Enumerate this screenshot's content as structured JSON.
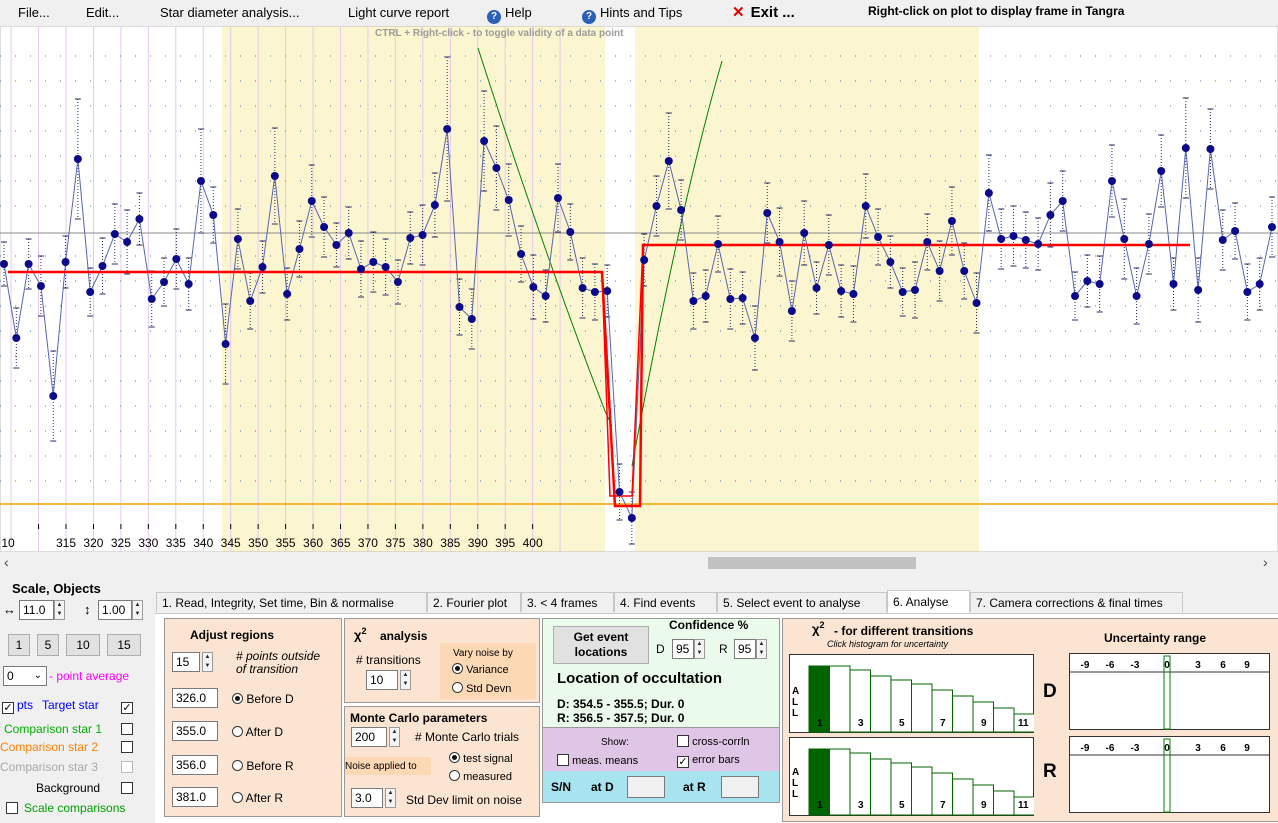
{
  "menu": {
    "file": "File...",
    "edit": "Edit...",
    "star_diameter": "Star diameter analysis...",
    "light_curve": "Light curve report",
    "help": "Help",
    "hints": "Hints and Tips",
    "exit": "Exit ...",
    "right_click_hint": "Right-click on plot to display frame in Tangra",
    "ctrl_hint": "CTRL + Right-click  -  to toggle validity of a data point"
  },
  "plot": {
    "x_ticks": [
      "10",
      "315",
      "320",
      "325",
      "330",
      "335",
      "340",
      "345",
      "350",
      "355",
      "360",
      "365",
      "370",
      "375",
      "380",
      "385",
      "390",
      "395",
      "400"
    ]
  },
  "left_panel": {
    "title": "Scale,  Objects",
    "x_scale": "11.0",
    "y_scale": "1.00",
    "avg_buttons": [
      "1",
      "5",
      "10",
      "15"
    ],
    "point_avg_value": "0",
    "point_avg_label": "- point average",
    "pts_label": "pts",
    "target_star": "Target star",
    "comparison1": "Comparison star 1",
    "comparison2": "Comparison star 2",
    "comparison3": "Comparison star 3",
    "background": "Background",
    "scale_comparisons": "Scale comparisons"
  },
  "tabs": [
    {
      "label": "1.  Read, Integrity, Set time, Bin & normalise"
    },
    {
      "label": "2. Fourier plot"
    },
    {
      "label": "3. < 4 frames"
    },
    {
      "label": "4. Find events"
    },
    {
      "label": "5. Select event to analyse"
    },
    {
      "label": "6. Analyse"
    },
    {
      "label": "7. Camera corrections & final times"
    }
  ],
  "adjust": {
    "title": "Adjust regions",
    "points_value": "15",
    "points_label_1": "# points outside",
    "points_label_2": "of transition",
    "before_d_value": "326.0",
    "before_d": "Before D",
    "after_d_value": "355.0",
    "after_d": "After D",
    "before_r_value": "356.0",
    "before_r": "Before R",
    "after_r_value": "381.0",
    "after_r": "After R"
  },
  "chi": {
    "title": "analysis",
    "transitions_label": "# transitions",
    "transitions_value": "10",
    "vary_title_1": "Vary noise by",
    "variance": "Variance",
    "std_devn": "Std Devn"
  },
  "monte_carlo": {
    "title": "Monte Carlo parameters",
    "trials_value": "200",
    "trials_label": "# Monte Carlo trials",
    "noise_label": "Noise applied to",
    "test_signal": "test signal",
    "measured": "measured",
    "std_limit_value": "3.0",
    "std_limit_label": "Std Dev limit on noise"
  },
  "event": {
    "get_button_1": "Get event",
    "get_button_2": "locations",
    "confidence_title": "Confidence %",
    "d_label": "D",
    "d_value": "95",
    "r_label": "R",
    "r_value": "95",
    "location_title": "Location of occultation",
    "d_result": "D: 354.5 - 355.5; Dur. 0",
    "r_result": "R: 356.5 - 357.5; Dur. 0",
    "show_label": "Show:",
    "cross_corr": "cross-corrln",
    "meas_means": "meas. means",
    "error_bars": "error bars",
    "sn_label": "S/N",
    "at_d": "at D",
    "at_r": "at R"
  },
  "chi_hist": {
    "title": "- for different transitions",
    "subtitle": "Click histogram for uncertainty",
    "all_label": [
      "A",
      "L",
      "L"
    ],
    "ticks": [
      "1",
      "3",
      "5",
      "7",
      "9",
      "11"
    ],
    "d_label": "D",
    "r_label": "R"
  },
  "uncertainty": {
    "title": "Uncertainty range",
    "ticks": [
      "-9",
      "-6",
      "-3",
      "0",
      "3",
      "6",
      "9"
    ]
  },
  "colors": {
    "highlight": "#fcf6d0",
    "fit": "#ff0000",
    "data": "#0000a0",
    "green_curve": "#008000",
    "orange_line": "#f5a000",
    "hist_fill": "#006400",
    "link_blue": "#0000ff"
  }
}
